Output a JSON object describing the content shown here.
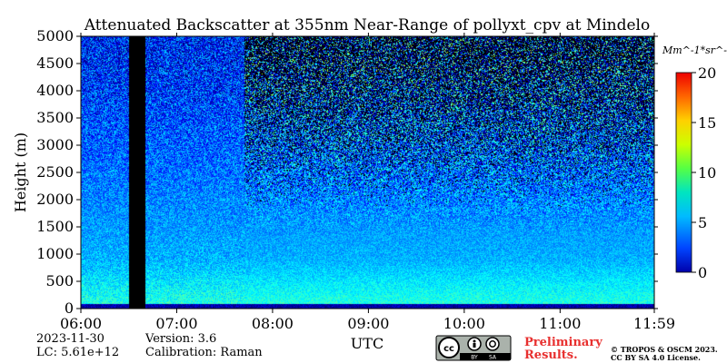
{
  "chart_data": {
    "type": "heatmap",
    "title": "Attenuated Backscatter at 355nm Near-Range of pollyxt_cpv at Mindelo",
    "xlabel": "UTC",
    "ylabel": "Height (m)",
    "x_ticks": [
      "06:00",
      "07:00",
      "08:00",
      "09:00",
      "10:00",
      "11:00",
      "11:59"
    ],
    "x_tick_hours": [
      6,
      7,
      8,
      9,
      10,
      11,
      11.983
    ],
    "xlim_hours": [
      6,
      11.983
    ],
    "y_ticks": [
      0,
      500,
      1000,
      1500,
      2000,
      2500,
      3000,
      3500,
      4000,
      4500,
      5000
    ],
    "ylim": [
      0,
      5000
    ],
    "colorbar": {
      "unit": "Mm^-1*sr^-1",
      "range": [
        0,
        20
      ],
      "ticks": [
        0,
        5,
        10,
        15,
        20
      ],
      "colormap": "jet"
    },
    "gap_interval_hours": [
      6.5,
      6.67
    ],
    "features": {
      "ground_layer_top_m": 100,
      "boundary_layer_top_m": 900,
      "noise_increase_after_hours": 7.7
    }
  },
  "footer": {
    "date": "2023-11-30",
    "lc": "LC: 5.61e+12",
    "version": "Version: 3.6",
    "calibration": "Calibration: Raman",
    "preliminary_line1": "Preliminary",
    "preliminary_line2": "Results.",
    "copyright_line1": "© TROPOS & OSCM 2023.",
    "copyright_line2": "CC BY SA 4.0 License.",
    "license_badge": "cc-by-sa-icon"
  }
}
